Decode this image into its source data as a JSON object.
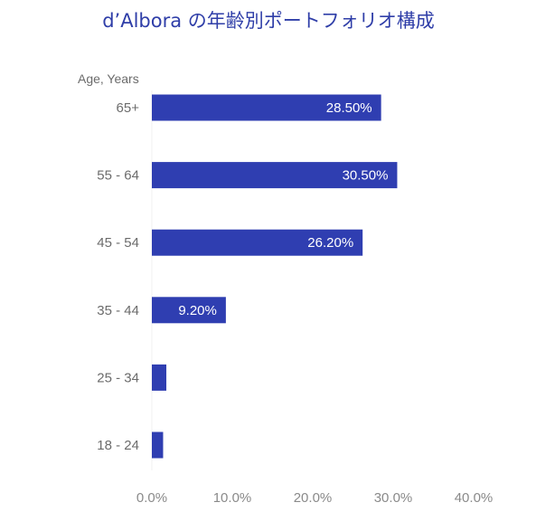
{
  "chart_data": {
    "type": "bar",
    "orientation": "horizontal",
    "title": "d’Albora の年齢別ポートフォリオ構成",
    "ylabel": "Age, Years",
    "xlabel": "",
    "categories": [
      "65+",
      "55 - 64",
      "45 - 54",
      "35 - 44",
      "25 - 34",
      "18 - 24"
    ],
    "values": [
      28.5,
      30.5,
      26.2,
      9.2,
      1.8,
      1.4
    ],
    "data_labels": [
      "28.50%",
      "30.50%",
      "26.20%",
      "9.20%",
      "",
      ""
    ],
    "xlim": [
      0,
      40
    ],
    "x_ticks": [
      0,
      10,
      20,
      30,
      40
    ],
    "x_tick_labels": [
      "0.0%",
      "10.0%",
      "20.0%",
      "30.0%",
      "40.0%"
    ],
    "grid": false,
    "legend": "none",
    "bar_color": "#2f3eb1"
  }
}
